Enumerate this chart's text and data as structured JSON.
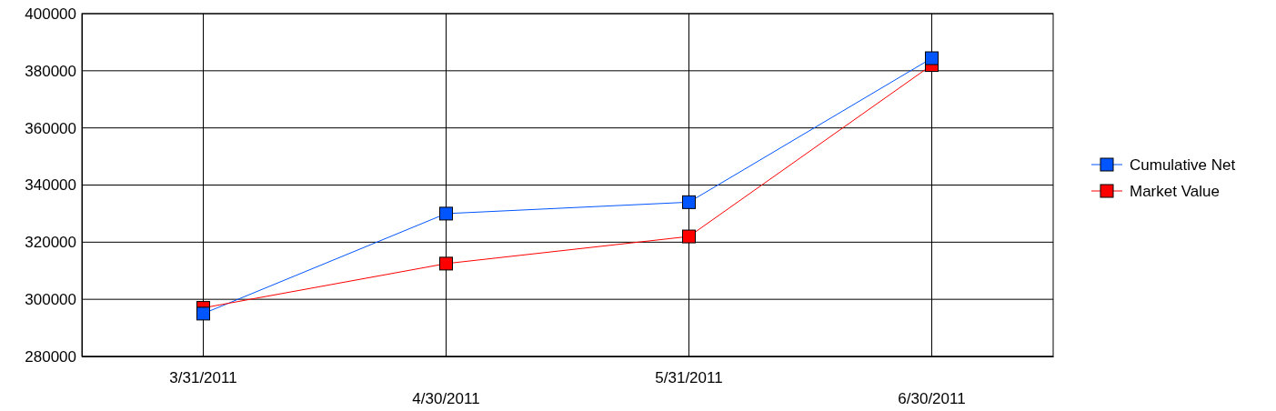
{
  "chart_data": {
    "type": "line",
    "categories": [
      "3/31/2011",
      "4/30/2011",
      "5/31/2011",
      "6/30/2011"
    ],
    "series": [
      {
        "name": "Cumulative Net",
        "color": "#0055ff",
        "values": [
          295000,
          330000,
          334000,
          384400
        ]
      },
      {
        "name": "Market Value",
        "color": "#ff0000",
        "values": [
          297000,
          312500,
          322000,
          382000
        ]
      }
    ],
    "ylim": [
      280000,
      400000
    ],
    "yticks": [
      280000,
      300000,
      320000,
      340000,
      360000,
      380000,
      400000
    ],
    "grid": true,
    "legend": "right",
    "marker": "square",
    "line_style": "solid"
  }
}
